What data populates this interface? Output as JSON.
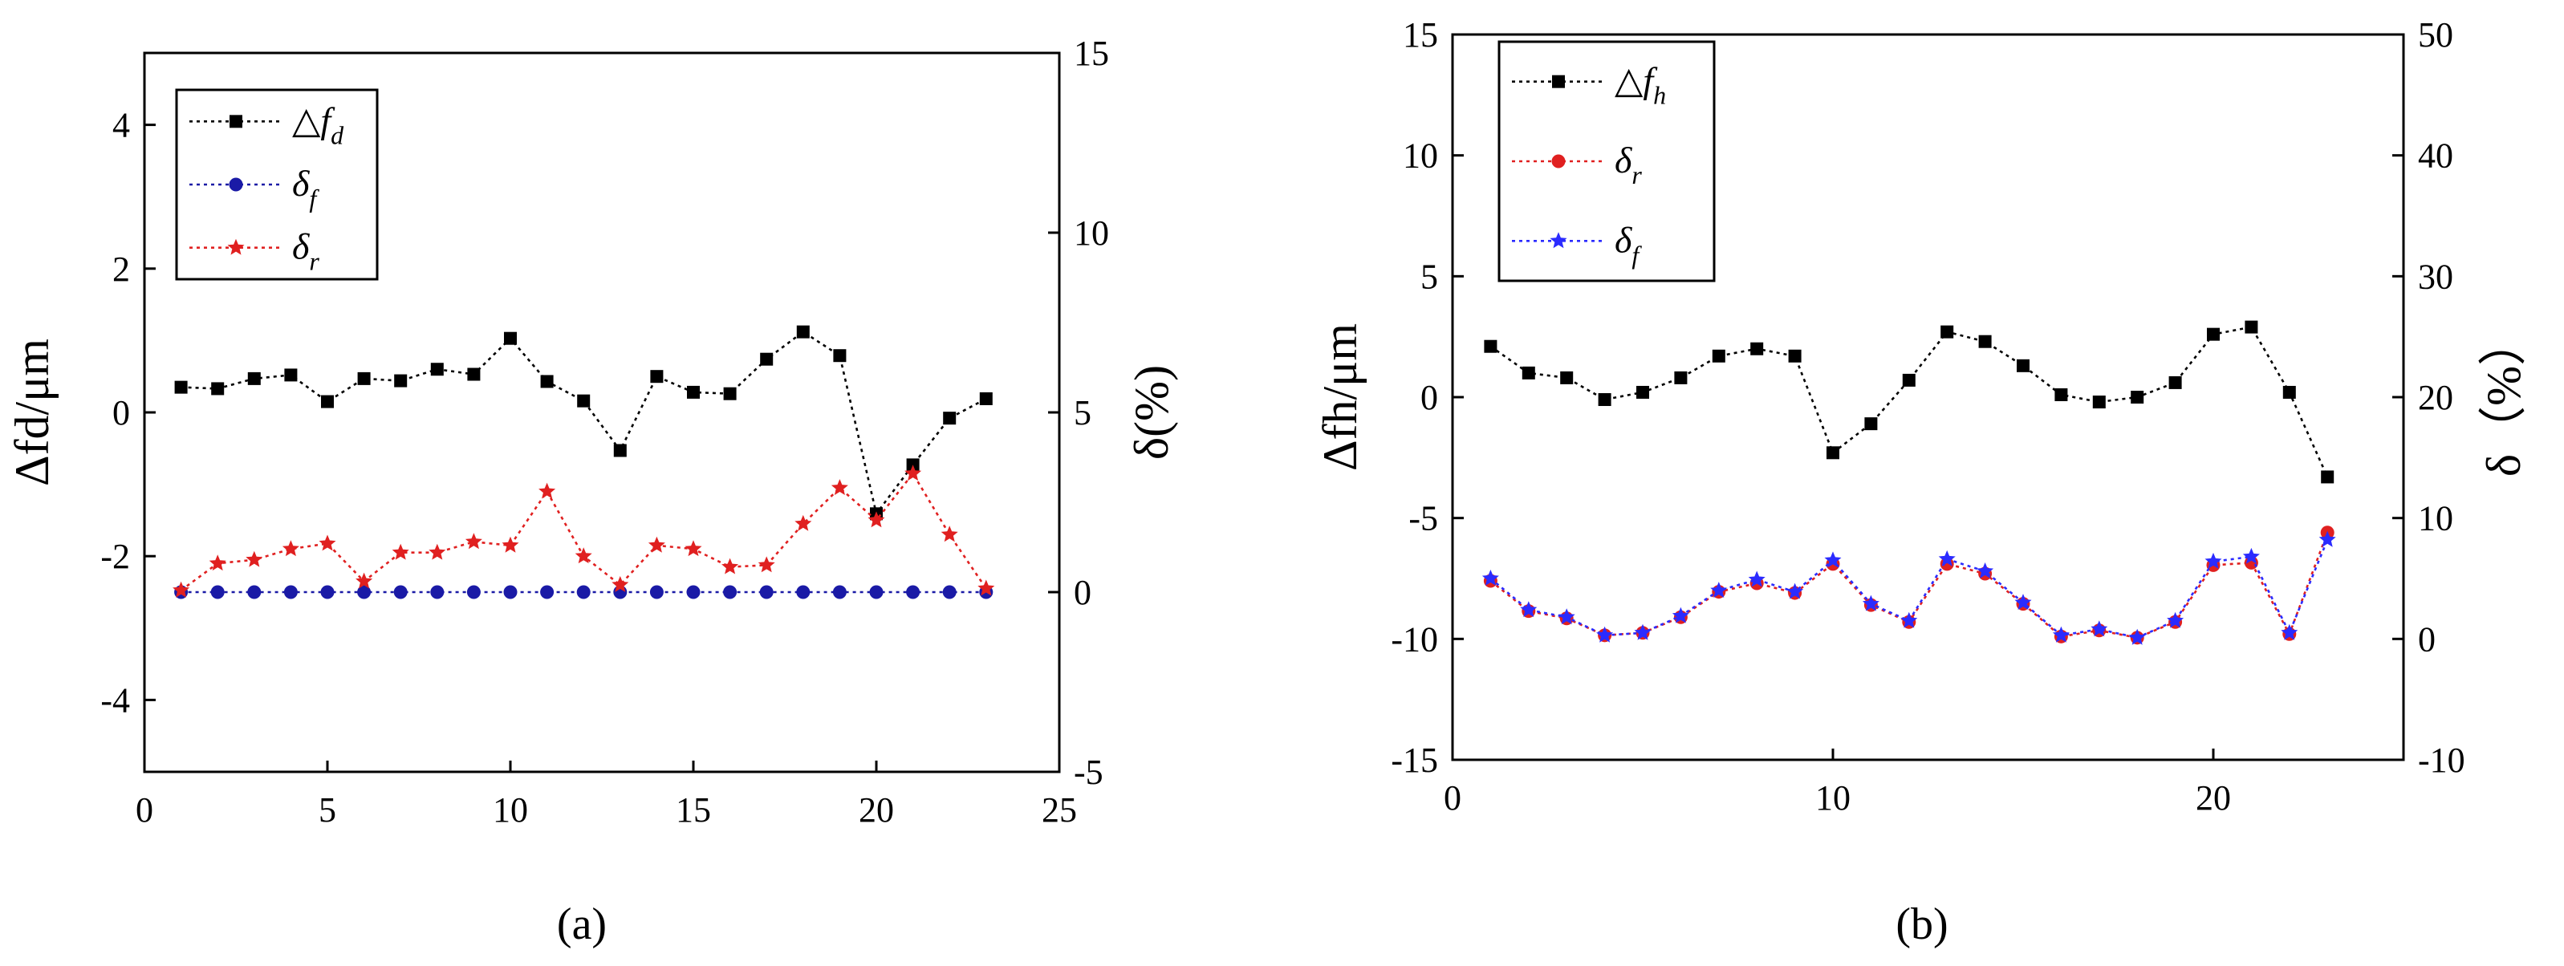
{
  "chart_data": [
    {
      "id": "a",
      "type": "line",
      "caption": "(a)",
      "title": "",
      "xlabel": "",
      "ylabel": "Δfd/μm",
      "ylabel_right": "δ(%)",
      "xlim": [
        0,
        25
      ],
      "ylim": [
        -5,
        5
      ],
      "ylim_right": [
        -5,
        15
      ],
      "x_ticks": [
        "0",
        "5",
        "10",
        "15",
        "20",
        "25"
      ],
      "y_ticks": [
        "-4",
        "-2",
        "0",
        "2",
        "4"
      ],
      "y_ticks_right": [
        "-5",
        "0",
        "5",
        "10",
        "15"
      ],
      "legend_position": "top-left",
      "x": [
        1,
        2,
        3,
        4,
        5,
        6,
        7,
        8,
        9,
        10,
        11,
        12,
        13,
        14,
        15,
        16,
        17,
        18,
        19,
        20,
        21,
        22,
        23
      ],
      "series": [
        {
          "name": "Δfd",
          "legend": "△f",
          "legend_sub": "d",
          "axis": "left",
          "marker": "square",
          "color": "#000000",
          "values": [
            0.35,
            0.33,
            0.47,
            0.52,
            0.15,
            0.47,
            0.44,
            0.6,
            0.53,
            1.03,
            0.43,
            0.16,
            -0.53,
            0.5,
            0.28,
            0.26,
            0.74,
            1.12,
            0.79,
            -1.41,
            -0.73,
            -0.08,
            0.19
          ]
        },
        {
          "name": "δf",
          "legend": "δ",
          "legend_sub": "f",
          "axis": "right",
          "marker": "circle",
          "color": "#1a1aa6",
          "values": [
            0,
            0,
            0,
            0,
            0,
            0,
            0,
            0,
            0,
            0,
            0,
            0,
            0,
            0,
            0,
            0,
            0,
            0,
            0,
            0,
            0,
            0,
            0
          ]
        },
        {
          "name": "δr",
          "legend": "δ",
          "legend_sub": "r",
          "axis": "right",
          "marker": "star",
          "color": "#e02020",
          "values": [
            0.05,
            0.8,
            0.9,
            1.2,
            1.35,
            0.3,
            1.1,
            1.1,
            1.4,
            1.3,
            2.8,
            1.0,
            0.2,
            1.3,
            1.2,
            0.7,
            0.75,
            1.9,
            2.9,
            2.0,
            3.3,
            1.6,
            0.1
          ]
        }
      ]
    },
    {
      "id": "b",
      "type": "line",
      "caption": "(b)",
      "title": "",
      "xlabel": "",
      "ylabel": "Δfh/μm",
      "ylabel_right": "δ（%）",
      "xlim": [
        0,
        25
      ],
      "ylim": [
        -15,
        15
      ],
      "ylim_right": [
        -10,
        50
      ],
      "x_ticks": [
        "0",
        "10",
        "20"
      ],
      "y_ticks": [
        "-15",
        "-10",
        "-5",
        "0",
        "5",
        "10",
        "15"
      ],
      "y_ticks_right": [
        "-10",
        "0",
        "10",
        "20",
        "30",
        "40",
        "50"
      ],
      "legend_position": "top-left",
      "x": [
        1,
        2,
        3,
        4,
        5,
        6,
        7,
        8,
        9,
        10,
        11,
        12,
        13,
        14,
        15,
        16,
        17,
        18,
        19,
        20,
        21,
        22,
        23
      ],
      "series": [
        {
          "name": "Δfh",
          "legend": "△f",
          "legend_sub": "h",
          "axis": "left",
          "marker": "square",
          "color": "#000000",
          "values": [
            2.1,
            1.0,
            0.8,
            -0.1,
            0.2,
            0.8,
            1.7,
            2.0,
            1.7,
            -2.3,
            -1.1,
            0.7,
            2.7,
            2.3,
            1.3,
            0.1,
            -0.2,
            0.0,
            0.6,
            2.6,
            2.9,
            0.2,
            -3.3
          ]
        },
        {
          "name": "δr",
          "legend": "δ",
          "legend_sub": "r",
          "axis": "right",
          "marker": "circle",
          "color": "#e02020",
          "values": [
            4.8,
            2.3,
            1.7,
            0.3,
            0.5,
            1.8,
            3.9,
            4.6,
            3.8,
            6.2,
            2.8,
            1.4,
            6.2,
            5.4,
            2.9,
            0.2,
            0.7,
            0.1,
            1.4,
            6.1,
            6.3,
            0.4,
            8.8
          ]
        },
        {
          "name": "δf",
          "legend": "δ",
          "legend_sub": "f",
          "axis": "right",
          "marker": "star",
          "color": "#2b2bff",
          "values": [
            5.0,
            2.4,
            1.8,
            0.3,
            0.5,
            1.9,
            4.0,
            4.9,
            3.9,
            6.5,
            2.9,
            1.5,
            6.6,
            5.6,
            3.0,
            0.3,
            0.8,
            0.1,
            1.5,
            6.4,
            6.8,
            0.5,
            8.2
          ]
        }
      ]
    }
  ]
}
